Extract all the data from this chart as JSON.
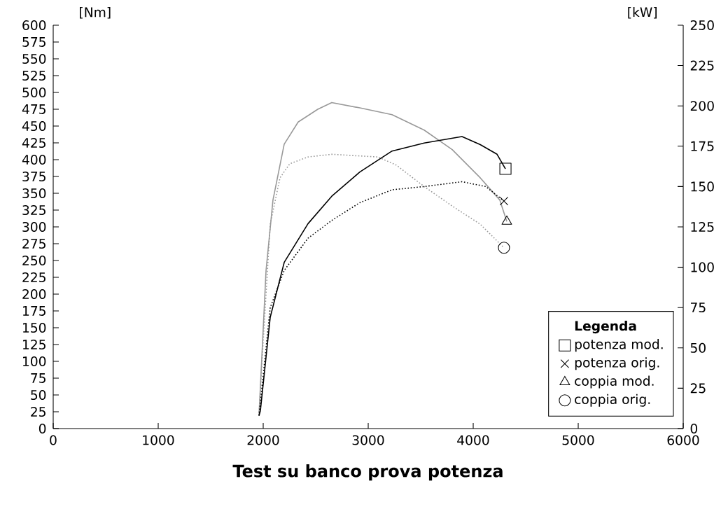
{
  "chart_data": {
    "type": "line",
    "title": "Test su banco prova potenza",
    "ylabel": "[Nm]",
    "y2label": "[kW]",
    "xlim": [
      0,
      6000
    ],
    "xticks": [
      0,
      1000,
      2000,
      3000,
      4000,
      5000,
      6000
    ],
    "ylim": [
      0,
      600
    ],
    "yticks": [
      0,
      25,
      50,
      75,
      100,
      125,
      150,
      175,
      200,
      225,
      250,
      275,
      300,
      325,
      350,
      375,
      400,
      425,
      450,
      475,
      500,
      525,
      550,
      575,
      600
    ],
    "y2lim": [
      0,
      250
    ],
    "y2ticks": [
      0,
      25,
      50,
      75,
      100,
      125,
      150,
      175,
      200,
      225,
      250
    ],
    "legend": "bottom right",
    "legend_title": "Legenda",
    "grid": false,
    "series": [
      {
        "name": "potenza mod.",
        "color": "#000000",
        "axis": "y2",
        "line_style": "solid",
        "x": [
          1960,
          1973,
          2067,
          2200,
          2427,
          2653,
          2920,
          3227,
          3533,
          3893,
          4067,
          4227,
          4307
        ],
        "values": [
          8,
          11,
          69,
          103,
          127,
          144,
          159,
          172,
          177,
          181,
          176,
          170,
          161
        ]
      },
      {
        "name": "potenza orig.",
        "color": "#000000",
        "axis": "y2",
        "line_style": "dotted",
        "x": [
          1960,
          1987,
          2067,
          2200,
          2427,
          2653,
          2920,
          3227,
          3533,
          3893,
          4120,
          4293
        ],
        "values": [
          8,
          25,
          75,
          98,
          118,
          129,
          140,
          148,
          150,
          153,
          150,
          141
        ]
      },
      {
        "name": "coppia mod.",
        "color": "#999999",
        "axis": "y",
        "line_style": "solid",
        "x": [
          1960,
          2027,
          2093,
          2200,
          2333,
          2520,
          2653,
          2920,
          3227,
          3533,
          3800,
          4067,
          4253,
          4320
        ],
        "values": [
          20,
          235,
          340,
          423,
          456,
          475,
          485,
          477,
          467,
          444,
          415,
          373,
          340,
          308
        ]
      },
      {
        "name": "coppia orig.",
        "color": "#999999",
        "axis": "y",
        "line_style": "dotted",
        "x": [
          1960,
          1987,
          2067,
          2160,
          2253,
          2427,
          2653,
          2867,
          3093,
          3267,
          3533,
          3800,
          4067,
          4293
        ],
        "values": [
          20,
          96,
          304,
          373,
          394,
          404,
          408,
          406,
          404,
          392,
          360,
          331,
          304,
          269
        ]
      }
    ]
  }
}
